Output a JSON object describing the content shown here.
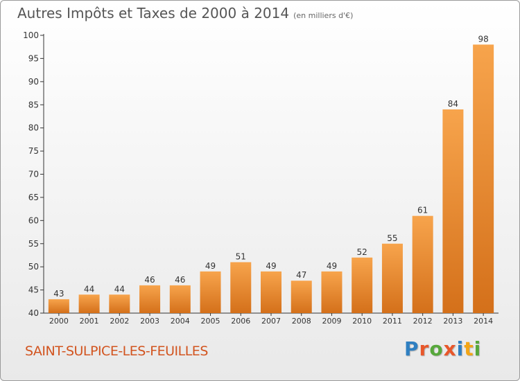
{
  "title": "Autres Impôts et Taxes de 2000 à 2014",
  "subtitle": "(en milliers d'€)",
  "commune": "SAINT-SULPICE-LES-FEUILLES",
  "logo": {
    "text": "Proxiti",
    "letter_colors": [
      "#2f7fc1",
      "#e8572a",
      "#57a83b",
      "#e8572a",
      "#2f7fc1",
      "#f2a516",
      "#57a83b"
    ]
  },
  "colors": {
    "bar_light": "#f7a44c",
    "bar_dark": "#d4701a",
    "axis": "#333333",
    "grid": "#dcdcdc",
    "commune": "#d2541f"
  },
  "chart_data": {
    "type": "bar",
    "categories": [
      "2000",
      "2001",
      "2002",
      "2003",
      "2004",
      "2005",
      "2006",
      "2007",
      "2008",
      "2009",
      "2010",
      "2011",
      "2012",
      "2013",
      "2014"
    ],
    "values": [
      43,
      44,
      44,
      46,
      46,
      49,
      51,
      49,
      47,
      49,
      52,
      55,
      61,
      84,
      98
    ],
    "ylim": [
      40,
      100
    ],
    "yticks": [
      40,
      45,
      50,
      55,
      60,
      65,
      70,
      75,
      80,
      85,
      90,
      95,
      100
    ],
    "grid": false,
    "data_labels": true
  }
}
